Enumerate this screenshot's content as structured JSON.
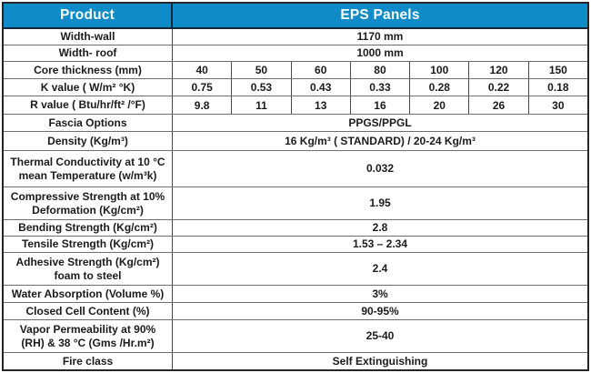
{
  "colors": {
    "header_bg": "#0f8bc7",
    "header_text": "#ffffff",
    "body_text": "#1b1b1b",
    "outer_border": "#262626",
    "inner_border": "#6e6e6e"
  },
  "table": {
    "header": {
      "product": "Product",
      "panels": "EPS Panels"
    },
    "rows": [
      {
        "label": "Width-wall",
        "value": "1170 mm"
      },
      {
        "label": "Width- roof",
        "value": "1000 mm"
      },
      {
        "label": "Core thickness (mm)",
        "values": [
          "40",
          "50",
          "60",
          "80",
          "100",
          "120",
          "150"
        ]
      },
      {
        "label": "K value ( W/m² °K)",
        "values": [
          "0.75",
          "0.53",
          "0.43",
          "0.33",
          "0.28",
          "0.22",
          "0.18"
        ]
      },
      {
        "label": "R value  ( Btu/hr/ft² /°F)",
        "values": [
          "9.8",
          "11",
          "13",
          "16",
          "20",
          "26",
          "30"
        ]
      },
      {
        "label": "Fascia Options",
        "value": "PPGS/PPGL"
      },
      {
        "label": "Density (Kg/m³)",
        "value": "16 Kg/m³ ( STANDARD) / 20-24 Kg/m³"
      },
      {
        "label": "Thermal Conductivity at 10 °C mean Temperature (w/m³k)",
        "value": "0.032"
      },
      {
        "label": "Compressive Strength at 10% Deformation (Kg/cm²)",
        "value": "1.95"
      },
      {
        "label": "Bending Strength (Kg/cm²)",
        "value": "2.8"
      },
      {
        "label": "Tensile Strength (Kg/cm²)",
        "value": "1.53 – 2.34"
      },
      {
        "label": "Adhesive Strength (Kg/cm²) foam to steel",
        "value": "2.4"
      },
      {
        "label": "Water Absorption (Volume %)",
        "value": "3%"
      },
      {
        "label": "Closed Cell Content (%)",
        "value": "90-95%"
      },
      {
        "label": "Vapor Permeability at 90% (RH) & 38 °C (Gms /Hr.m²)",
        "value": "25-40"
      },
      {
        "label": "Fire class",
        "value": "Self Extinguishing"
      }
    ]
  }
}
